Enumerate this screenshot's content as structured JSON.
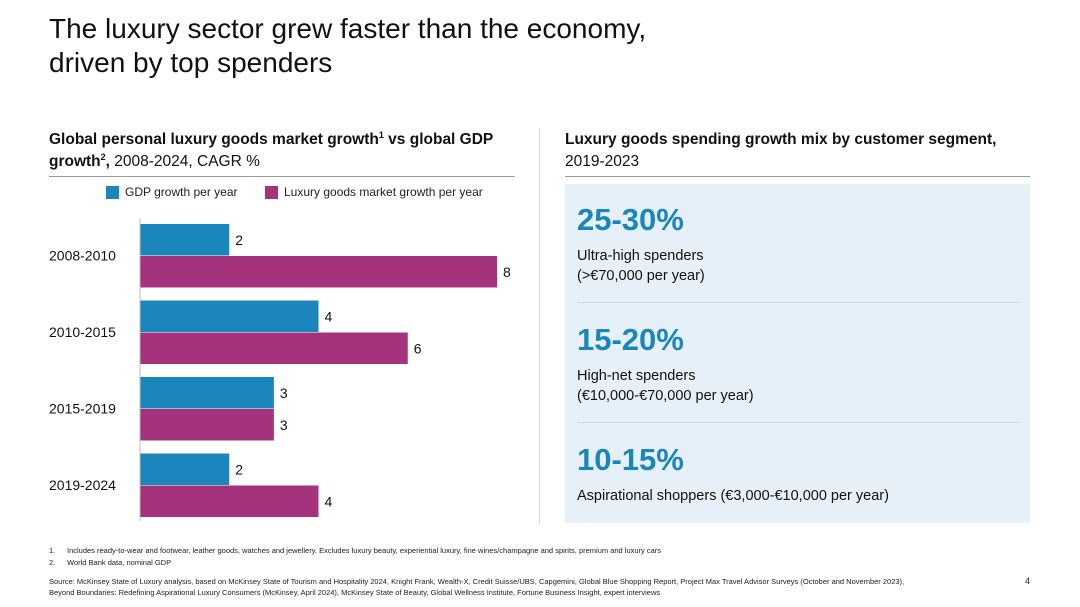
{
  "slide": {
    "title_line1": "The luxury sector grew faster than the economy,",
    "title_line2": "driven by top spenders",
    "page_number": "4"
  },
  "left": {
    "heading_part1": "Global personal luxury goods market growth",
    "heading_sup1": "1",
    "heading_part2": " vs global GDP growth",
    "heading_sup2": "2",
    "heading_comma": ",",
    "heading_rest": " 2008-2024, CAGR %"
  },
  "chart_data": {
    "type": "bar",
    "orientation": "horizontal",
    "title": "Global personal luxury goods market growth vs global GDP growth, 2008-2024, CAGR %",
    "categories": [
      "2008-2010",
      "2010-2015",
      "2015-2019",
      "2019-2024"
    ],
    "series": [
      {
        "name": "GDP growth per year",
        "color": "#1a86bb",
        "values": [
          2,
          4,
          3,
          2
        ]
      },
      {
        "name": "Luxury goods market growth per year",
        "color": "#a5327c",
        "values": [
          8,
          6,
          3,
          4
        ]
      }
    ],
    "xlim": [
      0,
      8
    ],
    "legend_position": "top"
  },
  "right": {
    "heading_bold": "Luxury goods spending growth mix by customer segment,",
    "heading_rest": "2019-2023",
    "segments": [
      {
        "pct": "25-30%",
        "desc_line1": "Ultra-high spenders",
        "desc_line2": "(>€70,000 per year)"
      },
      {
        "pct": "15-20%",
        "desc_line1": "High-net spenders",
        "desc_line2": "(€10,000-€70,000 per year)"
      },
      {
        "pct": "10-15%",
        "desc_line1": "Aspirational shoppers (€3,000-€10,000 per year)",
        "desc_line2": ""
      }
    ]
  },
  "footnotes": [
    {
      "num": "1.",
      "text": "Includes ready-to-wear and footwear, leather goods, watches and jewellery. Excludes luxury beauty, experiential luxury, fine wines/champagne and spirits, premium and luxury cars"
    },
    {
      "num": "2.",
      "text": "World Bank data, nominal GDP"
    }
  ],
  "source": {
    "line1": "Source: McKinsey State of Luxury analysis, based on McKinsey State of Tourism and Hospitality 2024, Knight Frank, Wealth-X, Credit Suisse/UBS, Capgemini, Global Blue Shopping Report, Project Max Travel Advisor Surveys (October and November 2023),",
    "line2": "Beyond Boundaries: Redefining Aspirational Luxury Consumers (McKinsey, April 2024), McKinsey State of Beauty, Global Wellness Institute, Fortune Business Insight, expert interviews"
  }
}
